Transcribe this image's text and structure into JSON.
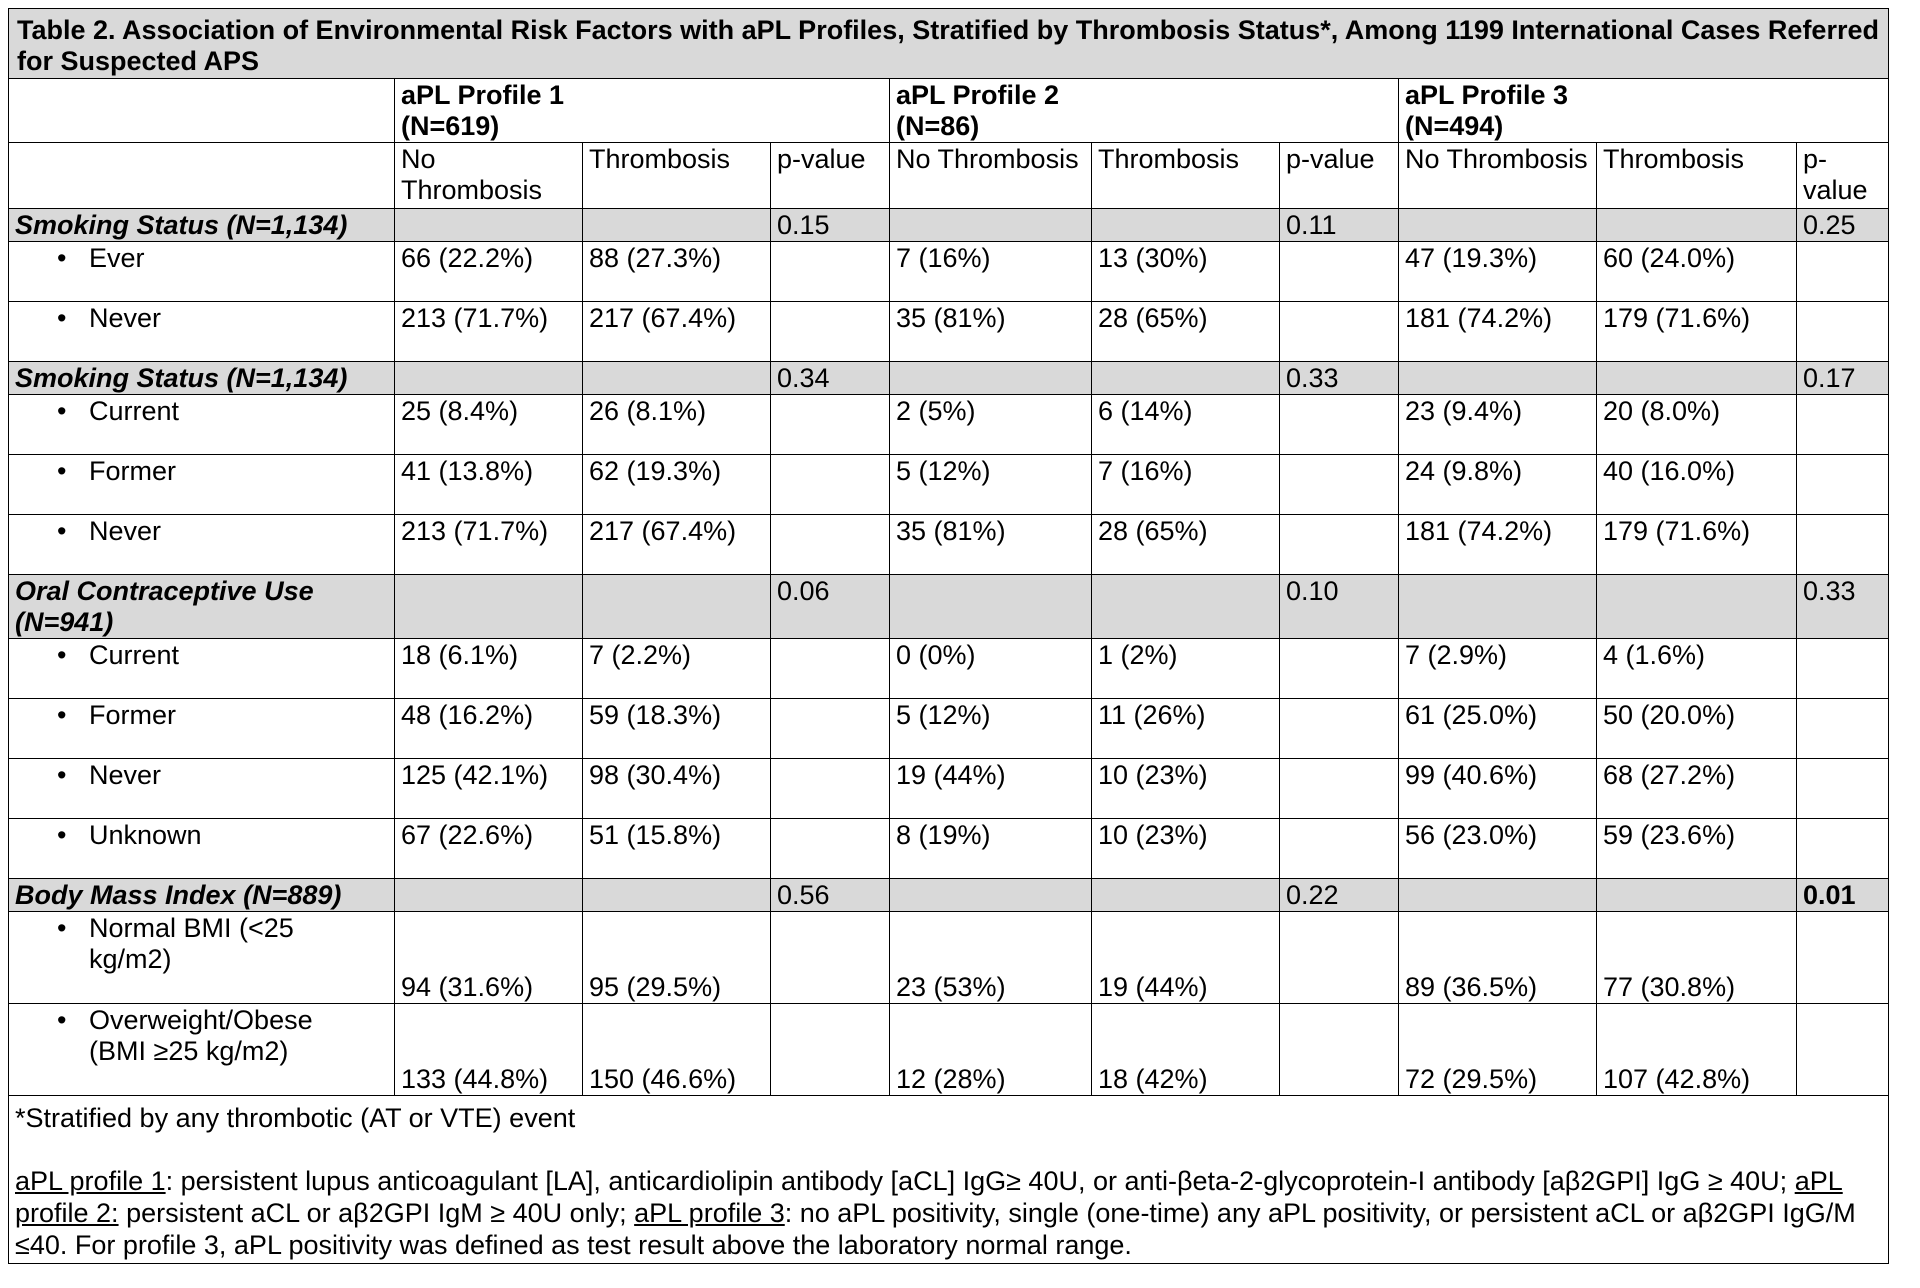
{
  "title": "Table 2. Association of Environmental Risk Factors with aPL Profiles, Stratified by Thrombosis Status*, Among 1199 International Cases Referred for Suspected APS",
  "profiles": [
    {
      "name": "aPL Profile 1",
      "n": "(N=619)"
    },
    {
      "name": "aPL Profile 2",
      "n": "(N=86)"
    },
    {
      "name": "aPL Profile 3",
      "n": "(N=494)"
    }
  ],
  "subheaders": {
    "no_thrombosis": "No Thrombosis",
    "thrombosis": "Thrombosis",
    "pvalue": "p-value"
  },
  "sections": [
    {
      "label": "Smoking Status (N=1,134)",
      "pvalues": [
        "0.15",
        "0.11",
        "0.25"
      ],
      "rows": [
        {
          "label": "Ever",
          "values": [
            "66 (22.2%)",
            "88 (27.3%)",
            "7 (16%)",
            "13 (30%)",
            "47 (19.3%)",
            "60 (24.0%)"
          ]
        },
        {
          "label": "Never",
          "values": [
            "213 (71.7%)",
            "217 (67.4%)",
            "35 (81%)",
            "28 (65%)",
            "181 (74.2%)",
            "179 (71.6%)"
          ]
        }
      ]
    },
    {
      "label": "Smoking Status (N=1,134)",
      "pvalues": [
        "0.34",
        "0.33",
        "0.17"
      ],
      "rows": [
        {
          "label": "Current",
          "values": [
            "25 (8.4%)",
            "26 (8.1%)",
            "2 (5%)",
            "6 (14%)",
            "23 (9.4%)",
            "20 (8.0%)"
          ]
        },
        {
          "label": "Former",
          "values": [
            "41 (13.8%)",
            "62 (19.3%)",
            "5 (12%)",
            "7 (16%)",
            "24 (9.8%)",
            "40 (16.0%)"
          ]
        },
        {
          "label": "Never",
          "values": [
            "213 (71.7%)",
            "217 (67.4%)",
            "35 (81%)",
            "28 (65%)",
            "181 (74.2%)",
            "179 (71.6%)"
          ]
        }
      ]
    },
    {
      "label": "Oral Contraceptive Use (N=941)",
      "pvalues": [
        "0.06",
        "0.10",
        "0.33"
      ],
      "rows": [
        {
          "label": "Current",
          "values": [
            "18 (6.1%)",
            "7 (2.2%)",
            "0 (0%)",
            "1 (2%)",
            "7 (2.9%)",
            "4 (1.6%)"
          ]
        },
        {
          "label": "Former",
          "values": [
            "48 (16.2%)",
            "59 (18.3%)",
            "5 (12%)",
            "11 (26%)",
            "61 (25.0%)",
            "50 (20.0%)"
          ]
        },
        {
          "label": "Never",
          "values": [
            "125 (42.1%)",
            "98 (30.4%)",
            "19 (44%)",
            "10 (23%)",
            "99 (40.6%)",
            "68 (27.2%)"
          ]
        },
        {
          "label": "Unknown",
          "values": [
            "67 (22.6%)",
            "51 (15.8%)",
            "8 (19%)",
            "10 (23%)",
            "56 (23.0%)",
            "59 (23.6%)"
          ]
        }
      ]
    },
    {
      "label": "Body Mass Index (N=889)",
      "pvalues": [
        "0.56",
        "0.22",
        "0.01"
      ],
      "rows": [
        {
          "label": "Normal BMI (<25 kg/m2)",
          "values": [
            "94 (31.6%)",
            "95 (29.5%)",
            "23 (53%)",
            "19 (44%)",
            "89 (36.5%)",
            "77 (30.8%)"
          ]
        },
        {
          "label": "Overweight/Obese (BMI ≥25 kg/m2)",
          "values": [
            "133 (44.8%)",
            "150 (46.6%)",
            "12 (28%)",
            "18 (42%)",
            "72 (29.5%)",
            "107 (42.8%)"
          ]
        }
      ]
    }
  ],
  "footnote": {
    "star": "*Stratified by any thrombotic (AT or VTE) event",
    "p1_label": "aPL profile 1",
    "p1_text": ": persistent lupus anticoagulant [LA], anticardiolipin antibody [aCL] IgG≥ 40U, or anti-βeta-2-glycoprotein-I antibody [aβ2GPI] IgG ≥ 40U; ",
    "p2_label": "aPL profile 2:",
    "p2_text": " persistent aCL or aβ2GPI IgM ≥ 40U only; ",
    "p3_label": "aPL profile 3",
    "p3_text": ": no aPL positivity, single (one-time) any aPL positivity, or persistent aCL or aβ2GPI IgG/M ≤40. For profile 3, aPL positivity was defined as test result above the laboratory normal range."
  }
}
